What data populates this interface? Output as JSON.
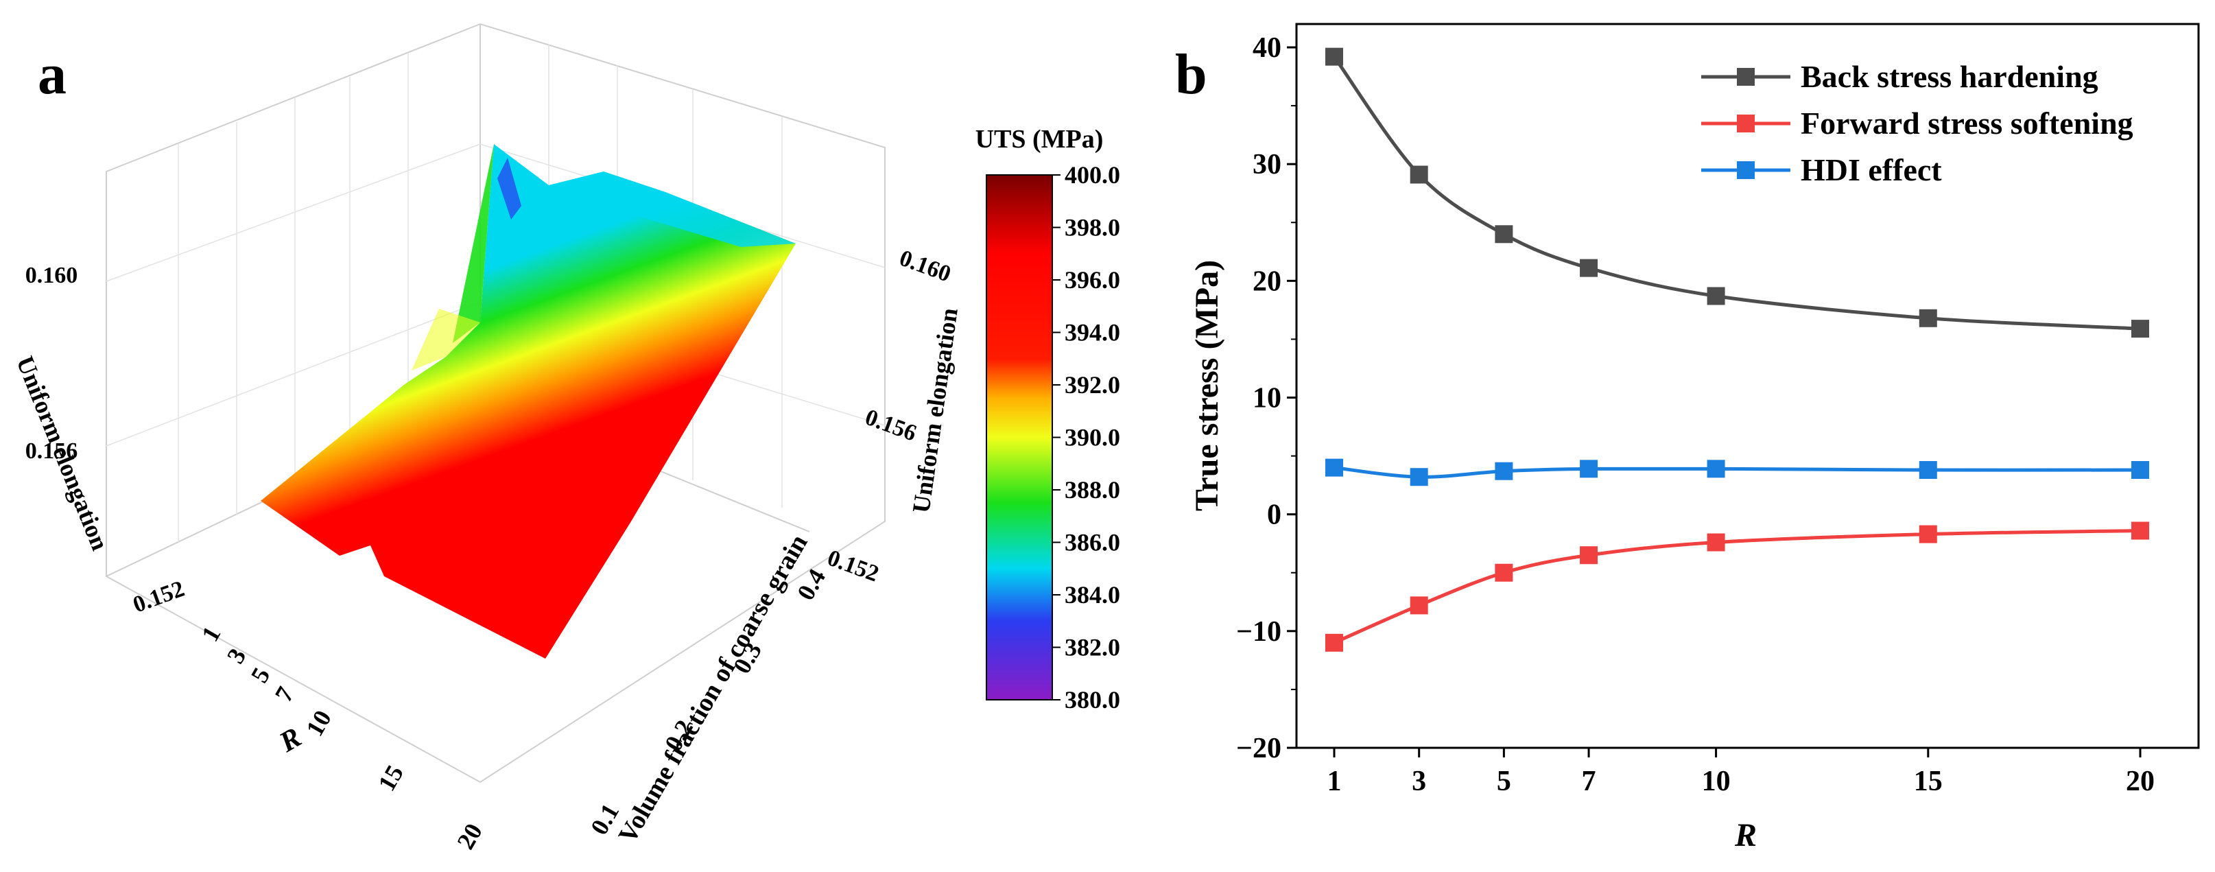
{
  "panels": {
    "a_label": "a",
    "b_label": "b"
  },
  "colorbar": {
    "title": "UTS (MPa)",
    "ticks": [
      "400.0",
      "398.0",
      "396.0",
      "394.0",
      "392.0",
      "390.0",
      "388.0",
      "386.0",
      "384.0",
      "382.0",
      "380.0"
    ],
    "range": [
      380,
      400
    ],
    "stops": [
      {
        "value": 380,
        "color": "#8b1cc6"
      },
      {
        "value": 383,
        "color": "#2a3cf0"
      },
      {
        "value": 385,
        "color": "#00d8f0"
      },
      {
        "value": 387.5,
        "color": "#19e01a"
      },
      {
        "value": 390,
        "color": "#f0ff1a"
      },
      {
        "value": 391.5,
        "color": "#ffb000"
      },
      {
        "value": 393,
        "color": "#ff1a00"
      },
      {
        "value": 397,
        "color": "#ff0000"
      },
      {
        "value": 400,
        "color": "#7a0000"
      }
    ]
  },
  "chart_data": [
    {
      "type": "surface",
      "panel": "a",
      "title": "",
      "xlabel": "R",
      "ylabel": "Volume fraction of coarse grain",
      "zlabel": "Uniform elongation",
      "color_label": "UTS (MPa)",
      "x_ticks": [
        "1",
        "3",
        "5",
        "7",
        "10",
        "15",
        "20"
      ],
      "y_ticks": [
        "0.1",
        "0.2",
        "0.3",
        "0.4"
      ],
      "z_ticks_left": [
        "0.152",
        "0.156",
        "0.160"
      ],
      "z_ticks_right": [
        "0.152",
        "0.156",
        "0.160"
      ]
    },
    {
      "type": "line",
      "panel": "b",
      "title": "",
      "xlabel": "R",
      "ylabel": "True stress (MPa)",
      "x": [
        1,
        3,
        5,
        7,
        10,
        15,
        20
      ],
      "x_tick_labels": [
        "1",
        "3",
        "5",
        "7",
        "10",
        "15",
        "20"
      ],
      "y_tick_labels": [
        "40",
        "30",
        "20",
        "10",
        "0",
        "−10",
        "−20"
      ],
      "ylim": [
        -20,
        42
      ],
      "series": [
        {
          "name": "Back stress hardening",
          "color": "#4d4d4d",
          "values": [
            39.2,
            29.1,
            24.0,
            21.1,
            18.7,
            16.8,
            15.9
          ]
        },
        {
          "name": "Forward stress softening",
          "color": "#f04040",
          "values": [
            -11.0,
            -7.8,
            -5.0,
            -3.5,
            -2.4,
            -1.7,
            -1.4
          ]
        },
        {
          "name": "HDI effect",
          "color": "#1b7fe0",
          "values": [
            4.0,
            3.2,
            3.7,
            3.9,
            3.9,
            3.8,
            3.8
          ]
        }
      ],
      "legend_position": "top-right"
    }
  ]
}
